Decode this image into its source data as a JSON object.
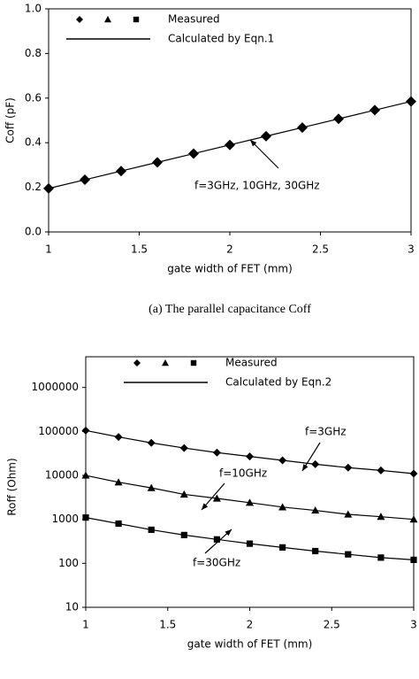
{
  "chart_data": [
    {
      "type": "line",
      "ylabel": "Coff (pF)",
      "xlabel": "gate width of FET (mm)",
      "caption": "(a) The parallel capacitance Coff",
      "legend": [
        "Measured",
        "Calculated by Eqn.1"
      ],
      "x": [
        1,
        1.2,
        1.4,
        1.6,
        1.8,
        2,
        2.2,
        2.4,
        2.6,
        2.8,
        3
      ],
      "series": [
        {
          "marker": "diamond",
          "values": [
            0.195,
            0.234,
            0.273,
            0.312,
            0.351,
            0.39,
            0.429,
            0.468,
            0.507,
            0.546,
            0.585
          ]
        }
      ],
      "curves": [
        [
          0.195,
          0.234,
          0.273,
          0.312,
          0.351,
          0.39,
          0.429,
          0.468,
          0.507,
          0.546,
          0.585
        ]
      ],
      "annotations": [
        "f=3GHz, 10GHz, 30GHz"
      ],
      "xlim": [
        1,
        3
      ],
      "xticks": [
        1,
        1.5,
        2,
        2.5,
        3
      ],
      "ylim": [
        0,
        1
      ],
      "yticks": [
        {
          "value": 0,
          "label": "0.0"
        },
        0.2,
        0.4,
        0.6,
        0.8,
        {
          "value": 1,
          "label": "1.0"
        }
      ],
      "log_y": false,
      "color": "#000000"
    },
    {
      "type": "line",
      "ylabel": "Roff (Ohm)",
      "xlabel": "gate width of FET (mm)",
      "legend": [
        "Measured",
        "Calculated by Eqn.2"
      ],
      "x": [
        1,
        1.2,
        1.4,
        1.6,
        1.8,
        2,
        2.2,
        2.4,
        2.6,
        2.8,
        3
      ],
      "series": [
        {
          "marker": "diamond",
          "values": [
            105000,
            75000,
            55000,
            42000,
            33000,
            27000,
            22000,
            18000,
            15000,
            13000,
            11000
          ]
        },
        {
          "marker": "triangle",
          "values": [
            10000,
            7000,
            5200,
            3700,
            3000,
            2400,
            1900,
            1600,
            1300,
            1150,
            1000
          ]
        },
        {
          "marker": "square",
          "values": [
            1100,
            800,
            580,
            440,
            350,
            280,
            230,
            190,
            160,
            135,
            120
          ]
        }
      ],
      "curves": [
        [
          105000,
          75000,
          55000,
          42000,
          33000,
          27000,
          22000,
          18000,
          15000,
          13000,
          11000
        ],
        [
          10000,
          7000,
          5200,
          3700,
          3000,
          2400,
          1900,
          1600,
          1300,
          1150,
          1000
        ],
        [
          1100,
          800,
          580,
          440,
          350,
          280,
          230,
          190,
          160,
          135,
          120
        ]
      ],
      "annotations": [
        "f=3GHz",
        "f=10GHz",
        "f=30GHz"
      ],
      "xlim": [
        1,
        3
      ],
      "xticks": [
        1,
        1.5,
        2,
        2.5,
        3
      ],
      "ylim": [
        10,
        5000000
      ],
      "yticks": [
        10,
        100,
        1000,
        10000,
        100000,
        1000000
      ],
      "log_y": true,
      "color": "#000000"
    }
  ]
}
